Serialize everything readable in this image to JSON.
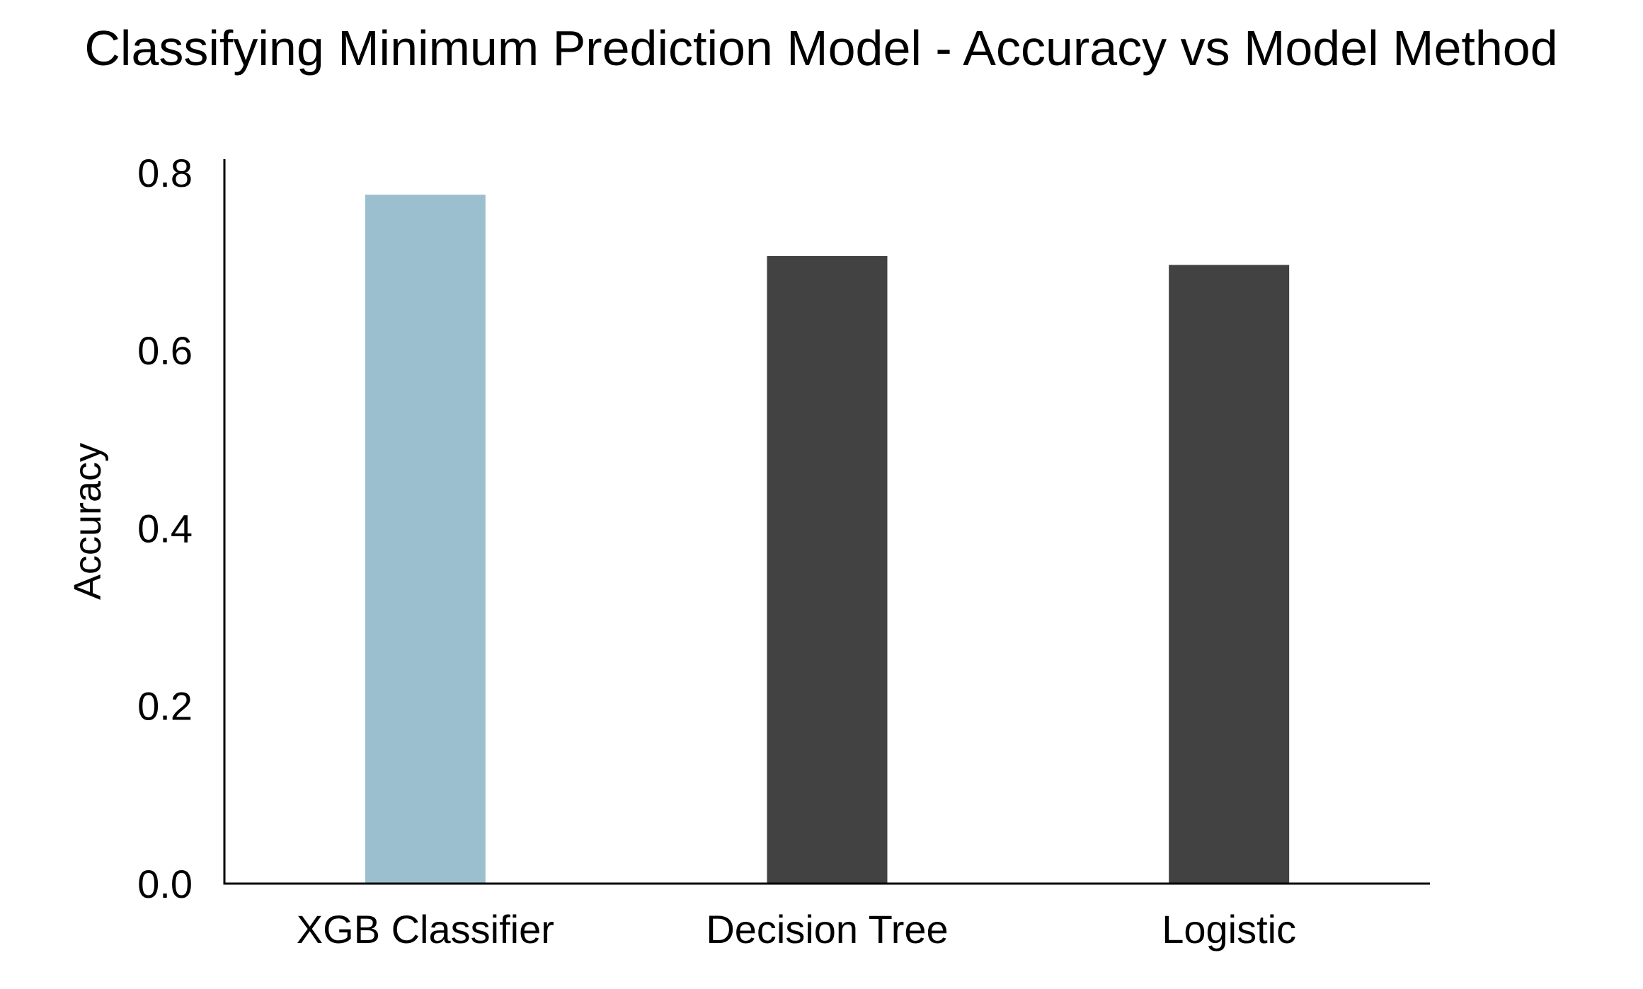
{
  "chart_data": {
    "type": "bar",
    "title": "Classifying Minimum Prediction Model - Accuracy vs Model Method",
    "xlabel": "",
    "ylabel": "Accuracy",
    "categories": [
      "XGB Classifier",
      "Decision Tree",
      "Logistic"
    ],
    "values": [
      0.775,
      0.706,
      0.696
    ],
    "bar_colors": [
      "#9bbfce",
      "#424242",
      "#424242"
    ],
    "ylim": [
      0,
      0.815
    ],
    "yticks": [
      0.0,
      0.2,
      0.4,
      0.6,
      0.8
    ],
    "ytick_labels": [
      "0.0",
      "0.2",
      "0.4",
      "0.6",
      "0.8"
    ],
    "grid": false,
    "legend": "none"
  }
}
